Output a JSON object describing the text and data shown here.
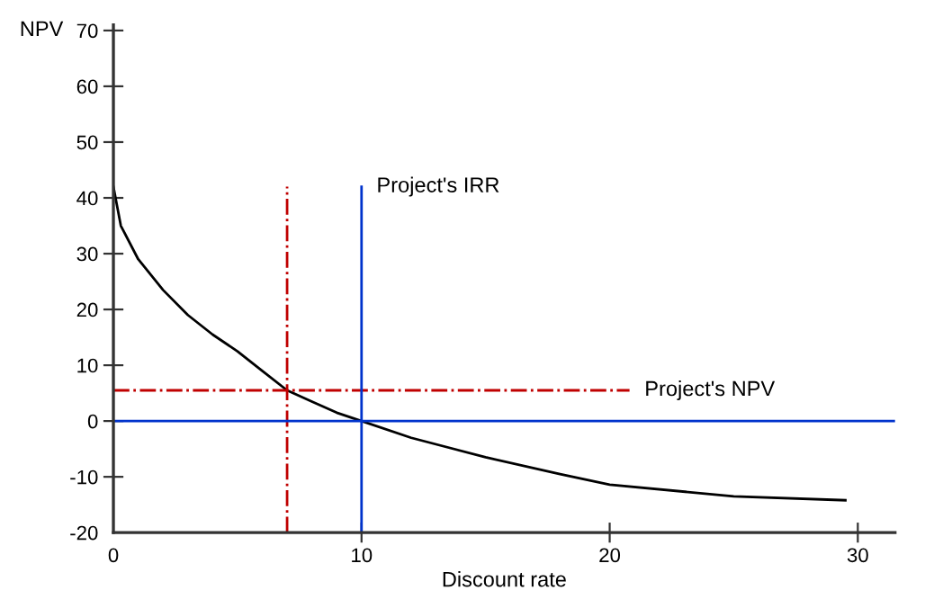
{
  "chart_data": {
    "type": "line",
    "xlabel": "Discount rate",
    "ylabel": "NPV",
    "xlim": [
      0,
      31.5
    ],
    "ylim": [
      -20,
      71
    ],
    "xticks": [
      0,
      10,
      20,
      30
    ],
    "yticks": [
      -20,
      -10,
      0,
      10,
      20,
      30,
      40,
      50,
      60,
      70
    ],
    "grid": false,
    "marker": "none",
    "series": [
      {
        "color": "#000000",
        "line_style": "solid",
        "x": [
          0,
          0.3,
          1,
          2,
          3,
          4,
          5,
          6,
          7,
          8,
          9,
          10,
          12,
          15,
          18,
          20,
          25,
          29.5
        ],
        "values": [
          42,
          35,
          29,
          23.5,
          19,
          15.5,
          12.5,
          9,
          5.5,
          3.5,
          1.5,
          0,
          -3,
          -6.5,
          -9.5,
          -11.4,
          -13.5,
          -14.2
        ]
      },
      {
        "color": "#c00000",
        "line_style": "dashdot",
        "x": [
          7,
          7
        ],
        "values": [
          -20,
          42
        ]
      },
      {
        "color": "#c00000",
        "line_style": "dashdot",
        "x": [
          0,
          20.8
        ],
        "values": [
          5.5,
          5.5
        ]
      },
      {
        "color": "#0033cc",
        "line_style": "solid",
        "x": [
          10,
          10
        ],
        "values": [
          -20,
          42
        ]
      }
    ],
    "ref_lines": [
      {
        "axis": "y",
        "value": 0,
        "color": "#0033cc",
        "line_style": "solid"
      }
    ],
    "annotations": [
      {
        "text": "Project's IRR",
        "x": 10,
        "y": 42
      },
      {
        "text": "Project's NPV",
        "x": 20.8,
        "y": 5.5
      }
    ]
  }
}
